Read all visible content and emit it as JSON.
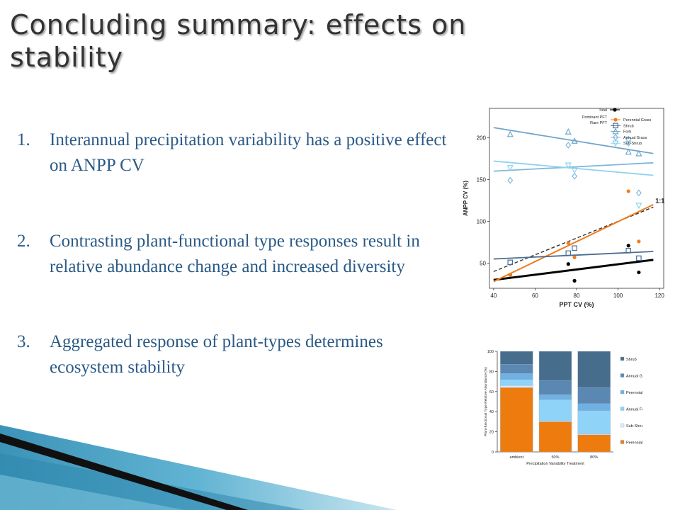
{
  "slide": {
    "title": "Concluding summary: effects on stability",
    "points": [
      {
        "number": "1.",
        "text": "Interannual precipitation variability has a positive effect on ANPP CV"
      },
      {
        "number": "2.",
        "text": "Contrasting plant-functional type responses result in relative abundance change and increased diversity"
      },
      {
        "number": "3.",
        "text": "Aggregated response of plant-types determines ecosystem stability"
      }
    ]
  },
  "chart_data": [
    {
      "type": "scatter",
      "xlabel": "PPT CV (%)",
      "ylabel": "ANPP CV (%)",
      "xlim": [
        38,
        122
      ],
      "ylim": [
        20,
        235
      ],
      "xticks": [
        40,
        60,
        80,
        100,
        120
      ],
      "yticks": [
        50,
        100,
        150,
        200
      ],
      "annotation": "1:1",
      "legend": {
        "position": "top-right",
        "group_labels": [
          "Total",
          "Dominant PFT",
          "Rare PFT"
        ],
        "entries": [
          "Perennial Grass",
          "Shrub",
          "Forb",
          "Annual Grass",
          "Sub-Shrub"
        ]
      },
      "series": [
        {
          "name": "Total",
          "color": "#000000",
          "marker": "circle",
          "points": [
            [
              48,
              36
            ],
            [
              76,
              49
            ],
            [
              79,
              29
            ],
            [
              105,
              71
            ],
            [
              110,
              39
            ]
          ],
          "fit": [
            [
              40,
              30
            ],
            [
              117,
              54
            ]
          ]
        },
        {
          "name": "Perennial Grass",
          "color": "#f07c1d",
          "marker": "circle",
          "points": [
            [
              48,
              36
            ],
            [
              76,
              74
            ],
            [
              79,
              57
            ],
            [
              105,
              136
            ],
            [
              110,
              76
            ]
          ],
          "fit": [
            [
              40,
              28
            ],
            [
              117,
              120
            ]
          ]
        },
        {
          "name": "Shrub",
          "color": "#4a6e92",
          "marker": "square",
          "points": [
            [
              48,
              51
            ],
            [
              76,
              62
            ],
            [
              79,
              68
            ],
            [
              105,
              65
            ],
            [
              110,
              56
            ]
          ],
          "fit": [
            [
              40,
              55
            ],
            [
              117,
              64
            ]
          ]
        },
        {
          "name": "Forb",
          "color": "#6fa6cc",
          "marker": "triangle-up",
          "points": [
            [
              48,
              204
            ],
            [
              76,
              207
            ],
            [
              79,
              196
            ],
            [
              105,
              183
            ],
            [
              110,
              181
            ]
          ],
          "fit": [
            [
              40,
              212
            ],
            [
              117,
              181
            ]
          ]
        },
        {
          "name": "Annual Grass",
          "color": "#7fb8dd",
          "marker": "diamond",
          "points": [
            [
              48,
              149
            ],
            [
              76,
              191
            ],
            [
              79,
              154
            ],
            [
              105,
              198
            ],
            [
              110,
              134
            ]
          ],
          "fit": [
            [
              40,
              160
            ],
            [
              117,
              170
            ]
          ]
        },
        {
          "name": "Sub-Shrub",
          "color": "#8fd2ee",
          "marker": "triangle-down",
          "points": [
            [
              48,
              164
            ],
            [
              76,
              167
            ],
            [
              79,
              161
            ],
            [
              105,
              193
            ],
            [
              110,
              119
            ]
          ],
          "fit": [
            [
              40,
              172
            ],
            [
              117,
              155
            ]
          ]
        }
      ],
      "reference_line": {
        "label": "1:1",
        "points": [
          [
            40,
            40
          ],
          [
            117,
            117
          ]
        ]
      }
    },
    {
      "type": "bar",
      "stacked": true,
      "xlabel": "Precipitation Variability Treatment",
      "ylabel": "Plant-functional Type Relative Abundance (%)",
      "ylim": [
        0,
        100
      ],
      "yticks": [
        0,
        20,
        40,
        60,
        80,
        100
      ],
      "categories": [
        "ambient",
        "50%",
        "80%"
      ],
      "legend_position": "right",
      "series": [
        {
          "name": "Perennial Grass",
          "color": "#ee7b0e",
          "values": [
            64,
            30,
            17
          ]
        },
        {
          "name": "Sub-Shrub",
          "color": "#dceef8",
          "values": [
            2,
            1,
            1
          ]
        },
        {
          "name": "Annual Forb",
          "color": "#8fd3f8",
          "values": [
            6,
            21,
            23
          ]
        },
        {
          "name": "Perennial Forb",
          "color": "#6fb1e3",
          "values": [
            6,
            5,
            7
          ]
        },
        {
          "name": "Annual Grass",
          "color": "#5a88b3",
          "values": [
            9,
            14,
            16
          ]
        },
        {
          "name": "Shrub",
          "color": "#476d8d",
          "values": [
            13,
            29,
            36
          ]
        }
      ],
      "legend_order": [
        "Shrub",
        "Annual Grass",
        "Perennial Forb",
        "Annual Forb",
        "Sub-Shrub",
        "Perennial Grass"
      ]
    }
  ]
}
